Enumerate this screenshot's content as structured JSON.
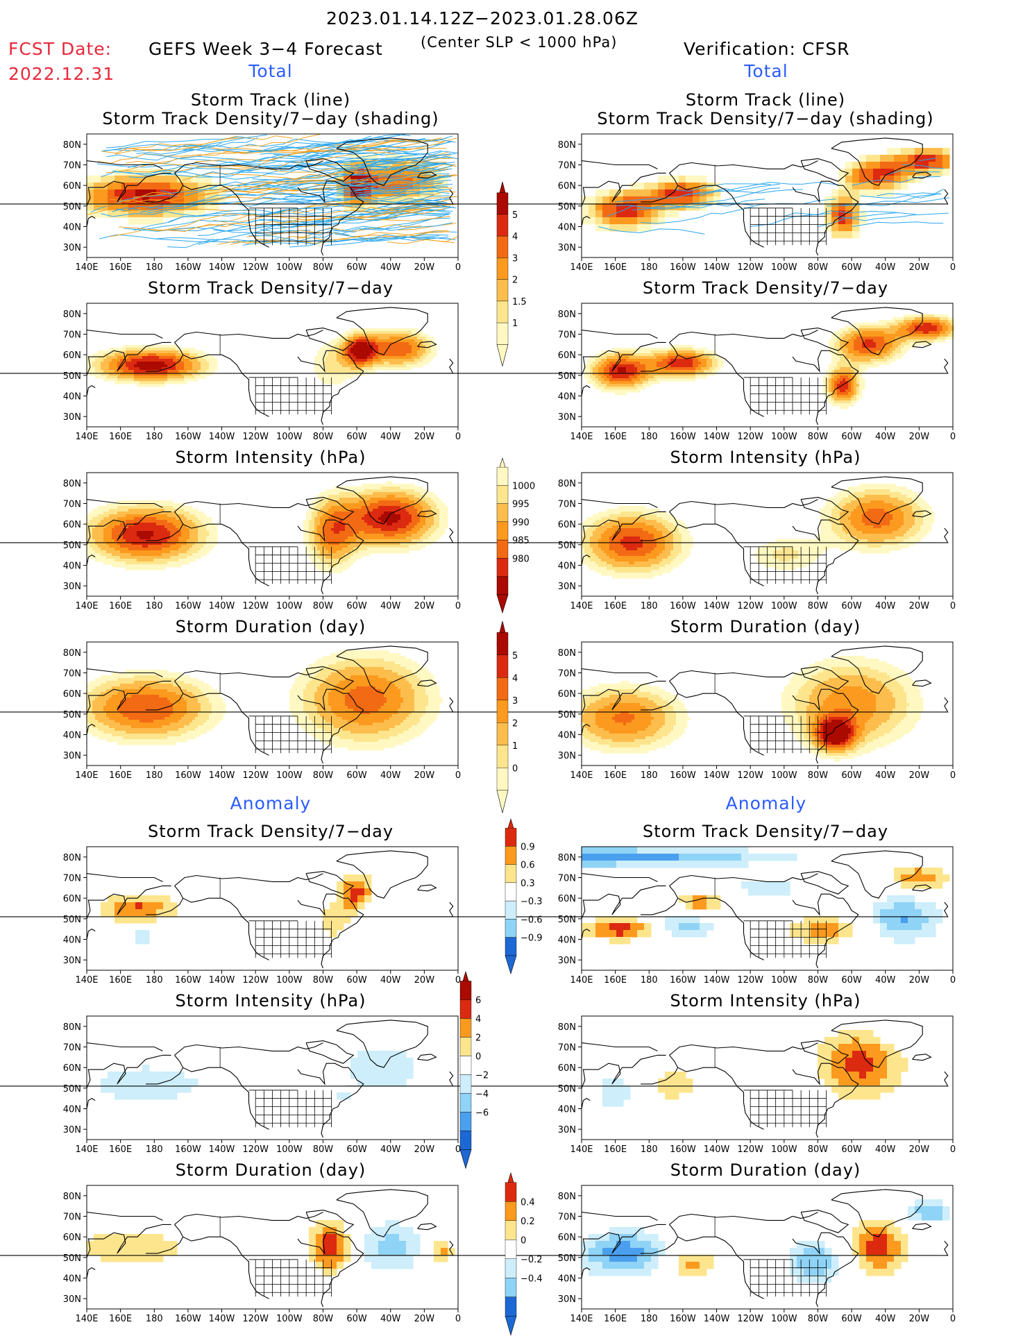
{
  "header": {
    "date_range": "2023.01.14.12Z−2023.01.28.06Z",
    "fcst_label": "FCST Date:",
    "fcst_date": "2022.12.31",
    "left_title": "GEFS Week 3−4 Forecast",
    "center_note": "(Center SLP < 1000 hPa)",
    "right_title": "Verification: CFSR"
  },
  "sections": {
    "total": "Total",
    "anomaly": "Anomaly"
  },
  "panel_titles": {
    "track_line": "Storm Track (line)",
    "track_density_shading": "Storm Track Density/7−day (shading)",
    "track_density": "Storm Track Density/7−day",
    "intensity": "Storm Intensity (hPa)",
    "duration": "Storm Duration (day)"
  },
  "axes": {
    "lon_ticks": [
      "140E",
      "160E",
      "180",
      "160W",
      "140W",
      "120W",
      "100W",
      "80W",
      "60W",
      "40W",
      "20W",
      "0"
    ],
    "lat_ticks": [
      "80N",
      "70N",
      "60N",
      "50N",
      "40N",
      "30N"
    ]
  },
  "colors": {
    "c1": "#fff8c2",
    "c2": "#fde58e",
    "c3": "#fdbd4c",
    "c4": "#fb9a1e",
    "c5": "#f36a14",
    "c6": "#dc2a10",
    "c7": "#aa0a00",
    "b1": "#cdeefa",
    "b2": "#8fd3f6",
    "b3": "#4aa0ee",
    "b4": "#1c68d4",
    "track_fcst": "#2aa7ee",
    "track_mean": "#f3a21e"
  },
  "colorbars": {
    "density": [
      "5",
      "4",
      "3",
      "2",
      "1.5",
      "1"
    ],
    "intensity": [
      "1000",
      "995",
      "990",
      "985",
      "980"
    ],
    "duration": [
      "5",
      "4",
      "3",
      "2",
      "1",
      "0"
    ],
    "anom_density": [
      "0.9",
      "0.6",
      "0.3",
      "−0.3",
      "−0.6",
      "−0.9"
    ],
    "anom_intensity": [
      "6",
      "4",
      "2",
      "0",
      "−2",
      "−4",
      "−6"
    ],
    "anom_duration": [
      "0.4",
      "0.2",
      "0",
      "−0.2",
      "−0.4"
    ]
  },
  "chart_data": [
    {
      "type": "heatmap",
      "panel": "GEFS Storm Track (line) / Storm Track Density",
      "blobs": [
        [
          175,
          55,
          40,
          10,
          4.6
        ],
        [
          -35,
          62,
          25,
          10,
          3.8
        ],
        [
          -60,
          60,
          10,
          10,
          4.2
        ]
      ]
    },
    {
      "type": "heatmap",
      "panel": "CFSR Storm Track (line) / Storm Track Density",
      "blobs": [
        [
          165,
          48,
          22,
          9,
          4.2
        ],
        [
          -160,
          56,
          20,
          7,
          4.2
        ],
        [
          -45,
          65,
          20,
          8,
          4.0
        ],
        [
          -65,
          45,
          10,
          10,
          4.2
        ],
        [
          -15,
          72,
          20,
          6,
          4.0
        ]
      ]
    },
    {
      "type": "heatmap",
      "panel": "GEFS Storm Track Density",
      "blobs": [
        [
          178,
          55,
          32,
          8,
          4.8
        ],
        [
          -58,
          62,
          10,
          8,
          4.2
        ],
        [
          -35,
          63,
          20,
          9,
          3.7
        ],
        [
          -75,
          55,
          15,
          14,
          1.6
        ]
      ]
    },
    {
      "type": "heatmap",
      "panel": "CFSR Storm Track Density",
      "blobs": [
        [
          163,
          52,
          18,
          9,
          4.4
        ],
        [
          -160,
          56,
          20,
          7,
          4.2
        ],
        [
          -50,
          65,
          20,
          9,
          4.0
        ],
        [
          -65,
          45,
          10,
          9,
          4.2
        ],
        [
          -15,
          73,
          18,
          6,
          4.2
        ]
      ]
    },
    {
      "type": "heatmap",
      "panel": "GEFS Storm Intensity",
      "blobs": [
        [
          175,
          55,
          35,
          14,
          4.5
        ],
        [
          -40,
          63,
          28,
          14,
          4.6
        ],
        [
          -75,
          55,
          15,
          18,
          3.0
        ]
      ]
    },
    {
      "type": "heatmap",
      "panel": "CFSR Storm Intensity",
      "blobs": [
        [
          170,
          51,
          30,
          15,
          4.0
        ],
        [
          -45,
          63,
          30,
          15,
          3.5
        ],
        [
          -100,
          45,
          25,
          10,
          1.6
        ]
      ]
    },
    {
      "type": "heatmap",
      "panel": "GEFS Storm Duration",
      "blobs": [
        [
          175,
          53,
          40,
          16,
          3.8
        ],
        [
          -55,
          57,
          40,
          22,
          3.5
        ]
      ]
    },
    {
      "type": "heatmap",
      "panel": "CFSR Storm Duration",
      "blobs": [
        [
          165,
          48,
          35,
          16,
          3.3
        ],
        [
          -60,
          55,
          40,
          22,
          3.0
        ],
        [
          -70,
          40,
          12,
          8,
          4.2
        ]
      ]
    },
    {
      "type": "heatmap",
      "panel": "GEFS Anomaly Storm Track Density",
      "blobs": [
        [
          170,
          55,
          25,
          8,
          0.7
        ],
        [
          -60,
          62,
          12,
          10,
          0.8
        ],
        [
          -75,
          48,
          12,
          10,
          0.4
        ],
        [
          172,
          42,
          18,
          6,
          -0.4
        ],
        [
          -40,
          57,
          20,
          6,
          -0.3
        ]
      ]
    },
    {
      "type": "heatmap",
      "panel": "CFSR Anomaly Storm Track Density",
      "blobs": [
        [
          150,
          80,
          120,
          5,
          -0.8
        ],
        [
          165,
          45,
          25,
          6,
          0.8
        ],
        [
          -160,
          47,
          20,
          8,
          -0.7
        ],
        [
          -150,
          57,
          15,
          6,
          0.7
        ],
        [
          -75,
          45,
          25,
          8,
          0.6
        ],
        [
          -30,
          50,
          25,
          12,
          -0.7
        ],
        [
          -20,
          70,
          20,
          6,
          0.7
        ],
        [
          -110,
          65,
          20,
          6,
          -0.5
        ]
      ]
    },
    {
      "type": "heatmap",
      "panel": "GEFS Anomaly Storm Intensity",
      "blobs": [
        [
          175,
          52,
          45,
          12,
          -3.0
        ],
        [
          -45,
          60,
          35,
          18,
          -2.6
        ],
        [
          -70,
          45,
          12,
          6,
          -1.2
        ]
      ]
    },
    {
      "type": "heatmap",
      "panel": "CFSR Anomaly Storm Intensity",
      "blobs": [
        [
          -55,
          62,
          28,
          18,
          5.0
        ],
        [
          160,
          48,
          15,
          10,
          -3.0
        ],
        [
          -165,
          52,
          15,
          10,
          3.0
        ],
        [
          -20,
          75,
          20,
          5,
          -2.5
        ]
      ]
    },
    {
      "type": "heatmap",
      "panel": "GEFS Anomaly Storm Duration",
      "blobs": [
        [
          165,
          55,
          40,
          10,
          0.22
        ],
        [
          -75,
          55,
          14,
          14,
          0.38
        ],
        [
          -40,
          55,
          25,
          15,
          -0.25
        ],
        [
          -10,
          53,
          10,
          6,
          0.3
        ]
      ]
    },
    {
      "type": "heatmap",
      "panel": "CFSR Anomaly Storm Duration",
      "blobs": [
        [
          165,
          52,
          30,
          12,
          -0.35
        ],
        [
          -155,
          47,
          15,
          8,
          0.3
        ],
        [
          -80,
          48,
          20,
          12,
          -0.3
        ],
        [
          -45,
          55,
          20,
          15,
          0.35
        ],
        [
          -15,
          72,
          18,
          6,
          -0.3
        ]
      ]
    }
  ]
}
